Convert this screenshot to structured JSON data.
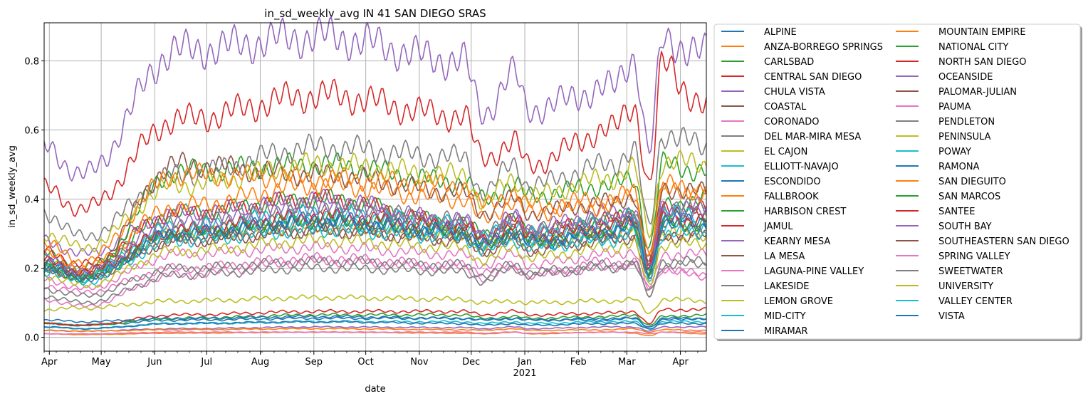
{
  "chart_data": {
    "type": "line",
    "title": "in_sd_weekly_avg IN 41 SAN DIEGO SRAS",
    "xlabel": "date",
    "ylabel": "in_sd_weekly_avg",
    "x_range": [
      "2020-03-29",
      "2021-04-16"
    ],
    "ylim": [
      -0.04,
      0.91
    ],
    "yticks": [
      0.0,
      0.2,
      0.4,
      0.6,
      0.8
    ],
    "ytick_labels": [
      "0.0",
      "0.2",
      "0.4",
      "0.6",
      "0.8"
    ],
    "xticks": [
      {
        "date": "2020-04-01",
        "label": "Apr"
      },
      {
        "date": "2020-05-01",
        "label": "May"
      },
      {
        "date": "2020-06-01",
        "label": "Jun"
      },
      {
        "date": "2020-07-01",
        "label": "Jul"
      },
      {
        "date": "2020-08-01",
        "label": "Aug"
      },
      {
        "date": "2020-09-01",
        "label": "Sep"
      },
      {
        "date": "2020-10-01",
        "label": "Oct"
      },
      {
        "date": "2020-11-01",
        "label": "Nov"
      },
      {
        "date": "2020-12-01",
        "label": "Dec"
      },
      {
        "date": "2021-01-01",
        "label": "Jan",
        "sublabel": "2021"
      },
      {
        "date": "2021-02-01",
        "label": "Feb"
      },
      {
        "date": "2021-03-01",
        "label": "Mar"
      },
      {
        "date": "2021-04-01",
        "label": "Apr"
      }
    ],
    "grid": true,
    "legend_position": "outside-right",
    "legend_columns": 2,
    "key_dates": [
      "2020-03-29",
      "2020-04-20",
      "2020-06-14",
      "2020-09-05",
      "2020-11-26",
      "2020-12-08",
      "2020-12-26",
      "2021-01-03",
      "2021-02-20",
      "2021-03-05",
      "2021-03-14",
      "2021-03-22",
      "2021-04-16"
    ],
    "series": [
      {
        "name": "ALPINE",
        "color": "#1f77b4",
        "values": [
          0.04,
          0.035,
          0.05,
          0.055,
          0.055,
          0.05,
          0.055,
          0.05,
          0.05,
          0.055,
          0.03,
          0.05,
          0.055
        ]
      },
      {
        "name": "ANZA-BORREGO SPRINGS",
        "color": "#ff7f0e",
        "values": [
          0.01,
          0.008,
          0.012,
          0.015,
          0.012,
          0.01,
          0.015,
          0.01,
          0.015,
          0.012,
          0.005,
          0.015,
          0.01
        ]
      },
      {
        "name": "CARLSBAD",
        "color": "#2ca02c",
        "values": [
          0.24,
          0.2,
          0.36,
          0.4,
          0.33,
          0.3,
          0.34,
          0.3,
          0.34,
          0.36,
          0.2,
          0.38,
          0.4
        ]
      },
      {
        "name": "CENTRAL SAN DIEGO",
        "color": "#d62728",
        "values": [
          0.25,
          0.21,
          0.36,
          0.4,
          0.33,
          0.29,
          0.34,
          0.31,
          0.34,
          0.36,
          0.21,
          0.37,
          0.37
        ]
      },
      {
        "name": "CHULA VISTA",
        "color": "#9467bd",
        "values": [
          0.28,
          0.24,
          0.36,
          0.4,
          0.34,
          0.3,
          0.35,
          0.32,
          0.36,
          0.37,
          0.22,
          0.38,
          0.38
        ]
      },
      {
        "name": "COASTAL",
        "color": "#8c564b",
        "values": [
          0.2,
          0.18,
          0.3,
          0.34,
          0.3,
          0.27,
          0.31,
          0.28,
          0.3,
          0.32,
          0.2,
          0.34,
          0.35
        ]
      },
      {
        "name": "CORONADO",
        "color": "#e377c2",
        "values": [
          0.15,
          0.13,
          0.2,
          0.23,
          0.21,
          0.19,
          0.21,
          0.18,
          0.22,
          0.21,
          0.12,
          0.2,
          0.18
        ]
      },
      {
        "name": "DEL MAR-MIRA MESA",
        "color": "#7f7f7f",
        "values": [
          0.22,
          0.19,
          0.33,
          0.38,
          0.34,
          0.3,
          0.34,
          0.31,
          0.34,
          0.36,
          0.2,
          0.37,
          0.38
        ]
      },
      {
        "name": "EL CAJON",
        "color": "#bcbd22",
        "values": [
          0.22,
          0.18,
          0.3,
          0.32,
          0.3,
          0.26,
          0.3,
          0.27,
          0.3,
          0.31,
          0.18,
          0.3,
          0.3
        ]
      },
      {
        "name": "ELLIOTT-NAVAJO",
        "color": "#17becf",
        "values": [
          0.2,
          0.17,
          0.3,
          0.33,
          0.3,
          0.26,
          0.3,
          0.27,
          0.29,
          0.31,
          0.18,
          0.32,
          0.33
        ]
      },
      {
        "name": "ESCONDIDO",
        "color": "#1f77b4",
        "values": [
          0.22,
          0.18,
          0.3,
          0.33,
          0.3,
          0.26,
          0.3,
          0.27,
          0.3,
          0.32,
          0.19,
          0.32,
          0.32
        ]
      },
      {
        "name": "FALLBROOK",
        "color": "#ff7f0e",
        "values": [
          0.24,
          0.2,
          0.38,
          0.44,
          0.4,
          0.34,
          0.39,
          0.36,
          0.38,
          0.41,
          0.24,
          0.42,
          0.43
        ]
      },
      {
        "name": "HARBISON CREST",
        "color": "#2ca02c",
        "values": [
          0.04,
          0.035,
          0.055,
          0.065,
          0.065,
          0.055,
          0.06,
          0.055,
          0.06,
          0.065,
          0.035,
          0.06,
          0.065
        ]
      },
      {
        "name": "JAMUL",
        "color": "#d62728",
        "values": [
          0.04,
          0.035,
          0.065,
          0.075,
          0.075,
          0.065,
          0.075,
          0.065,
          0.07,
          0.075,
          0.04,
          0.08,
          0.08
        ]
      },
      {
        "name": "KEARNY MESA",
        "color": "#9467bd",
        "values": [
          0.02,
          0.018,
          0.025,
          0.03,
          0.028,
          0.025,
          0.03,
          0.025,
          0.03,
          0.03,
          0.018,
          0.03,
          0.03
        ]
      },
      {
        "name": "LA MESA",
        "color": "#8c564b",
        "values": [
          0.2,
          0.17,
          0.28,
          0.31,
          0.29,
          0.25,
          0.29,
          0.26,
          0.29,
          0.3,
          0.17,
          0.3,
          0.3
        ]
      },
      {
        "name": "LAGUNA-PINE VALLEY",
        "color": "#e377c2",
        "values": [
          0.11,
          0.09,
          0.18,
          0.22,
          0.2,
          0.17,
          0.2,
          0.18,
          0.2,
          0.22,
          0.14,
          0.2,
          0.17
        ]
      },
      {
        "name": "LAKESIDE",
        "color": "#7f7f7f",
        "values": [
          0.12,
          0.1,
          0.18,
          0.2,
          0.19,
          0.16,
          0.2,
          0.18,
          0.2,
          0.21,
          0.12,
          0.21,
          0.21
        ]
      },
      {
        "name": "LEMON GROVE",
        "color": "#bcbd22",
        "values": [
          0.08,
          0.085,
          0.105,
          0.115,
          0.11,
          0.1,
          0.105,
          0.1,
          0.105,
          0.11,
          0.07,
          0.11,
          0.105
        ]
      },
      {
        "name": "MID-CITY",
        "color": "#17becf",
        "values": [
          0.03,
          0.025,
          0.04,
          0.045,
          0.045,
          0.04,
          0.045,
          0.04,
          0.045,
          0.045,
          0.025,
          0.045,
          0.045
        ]
      },
      {
        "name": "MIRAMAR",
        "color": "#1f77b4",
        "values": [
          0.03,
          0.025,
          0.04,
          0.045,
          0.04,
          0.035,
          0.04,
          0.035,
          0.04,
          0.04,
          0.025,
          0.04,
          0.04
        ]
      },
      {
        "name": "MOUNTAIN EMPIRE",
        "color": "#ff7f0e",
        "values": [
          0.02,
          0.018,
          0.022,
          0.025,
          0.022,
          0.02,
          0.025,
          0.02,
          0.022,
          0.025,
          0.015,
          0.022,
          0.02
        ]
      },
      {
        "name": "NATIONAL CITY",
        "color": "#2ca02c",
        "values": [
          0.2,
          0.17,
          0.48,
          0.5,
          0.45,
          0.4,
          0.44,
          0.41,
          0.44,
          0.46,
          0.26,
          0.5,
          0.48
        ]
      },
      {
        "name": "NORTH SAN DIEGO",
        "color": "#d62728",
        "values": [
          0.43,
          0.37,
          0.63,
          0.7,
          0.64,
          0.52,
          0.56,
          0.5,
          0.6,
          0.67,
          0.44,
          0.79,
          0.66
        ]
      },
      {
        "name": "OCEANSIDE",
        "color": "#9467bd",
        "values": [
          0.55,
          0.47,
          0.83,
          0.87,
          0.8,
          0.65,
          0.76,
          0.66,
          0.72,
          0.81,
          0.54,
          0.86,
          0.82
        ]
      },
      {
        "name": "PALOMAR-JULIAN",
        "color": "#8c564b",
        "values": [
          0.22,
          0.18,
          0.5,
          0.47,
          0.42,
          0.36,
          0.4,
          0.36,
          0.39,
          0.41,
          0.22,
          0.43,
          0.42
        ]
      },
      {
        "name": "PAUMA",
        "color": "#e377c2",
        "values": [
          0.01,
          0.01,
          0.015,
          0.015,
          0.015,
          0.012,
          0.015,
          0.012,
          0.015,
          0.015,
          0.01,
          0.015,
          0.015
        ]
      },
      {
        "name": "PENDLETON",
        "color": "#7f7f7f",
        "values": [
          0.36,
          0.29,
          0.47,
          0.55,
          0.52,
          0.42,
          0.5,
          0.44,
          0.5,
          0.54,
          0.32,
          0.59,
          0.55
        ]
      },
      {
        "name": "PENINSULA",
        "color": "#bcbd22",
        "values": [
          0.3,
          0.26,
          0.44,
          0.5,
          0.47,
          0.39,
          0.46,
          0.41,
          0.46,
          0.49,
          0.3,
          0.51,
          0.5
        ]
      },
      {
        "name": "POWAY",
        "color": "#17becf",
        "values": [
          0.21,
          0.18,
          0.32,
          0.36,
          0.33,
          0.29,
          0.33,
          0.3,
          0.33,
          0.35,
          0.2,
          0.36,
          0.35
        ]
      },
      {
        "name": "RAMONA",
        "color": "#1f77b4",
        "values": [
          0.05,
          0.045,
          0.055,
          0.06,
          0.055,
          0.05,
          0.055,
          0.05,
          0.055,
          0.055,
          0.03,
          0.055,
          0.055
        ]
      },
      {
        "name": "SAN DIEGUITO",
        "color": "#ff7f0e",
        "values": [
          0.27,
          0.22,
          0.47,
          0.46,
          0.44,
          0.38,
          0.42,
          0.38,
          0.4,
          0.42,
          0.25,
          0.44,
          0.42
        ]
      },
      {
        "name": "SAN MARCOS",
        "color": "#2ca02c",
        "values": [
          0.2,
          0.17,
          0.3,
          0.34,
          0.31,
          0.27,
          0.31,
          0.28,
          0.31,
          0.33,
          0.19,
          0.33,
          0.33
        ]
      },
      {
        "name": "SANTEE",
        "color": "#d62728",
        "values": [
          0.22,
          0.19,
          0.31,
          0.35,
          0.32,
          0.28,
          0.32,
          0.29,
          0.32,
          0.34,
          0.2,
          0.34,
          0.34
        ]
      },
      {
        "name": "SOUTH BAY",
        "color": "#9467bd",
        "values": [
          0.23,
          0.19,
          0.33,
          0.37,
          0.33,
          0.29,
          0.34,
          0.3,
          0.33,
          0.35,
          0.2,
          0.36,
          0.36
        ]
      },
      {
        "name": "SOUTHEASTERN SAN DIEGO",
        "color": "#8c564b",
        "values": [
          0.2,
          0.17,
          0.28,
          0.31,
          0.28,
          0.25,
          0.28,
          0.25,
          0.28,
          0.29,
          0.17,
          0.29,
          0.29
        ]
      },
      {
        "name": "SPRING VALLEY",
        "color": "#e377c2",
        "values": [
          0.17,
          0.14,
          0.24,
          0.26,
          0.24,
          0.21,
          0.24,
          0.21,
          0.24,
          0.25,
          0.14,
          0.24,
          0.24
        ]
      },
      {
        "name": "SWEETWATER",
        "color": "#7f7f7f",
        "values": [
          0.14,
          0.12,
          0.2,
          0.22,
          0.21,
          0.18,
          0.21,
          0.19,
          0.21,
          0.22,
          0.13,
          0.22,
          0.22
        ]
      },
      {
        "name": "UNIVERSITY",
        "color": "#bcbd22",
        "values": [
          0.18,
          0.15,
          0.25,
          0.28,
          0.26,
          0.22,
          0.26,
          0.23,
          0.26,
          0.27,
          0.15,
          0.27,
          0.27
        ]
      },
      {
        "name": "VALLEY CENTER",
        "color": "#17becf",
        "values": [
          0.19,
          0.16,
          0.28,
          0.31,
          0.29,
          0.25,
          0.28,
          0.26,
          0.28,
          0.3,
          0.17,
          0.3,
          0.3
        ]
      },
      {
        "name": "VISTA",
        "color": "#1f77b4",
        "values": [
          0.2,
          0.17,
          0.3,
          0.34,
          0.31,
          0.27,
          0.31,
          0.28,
          0.31,
          0.33,
          0.19,
          0.34,
          0.34
        ]
      }
    ]
  }
}
